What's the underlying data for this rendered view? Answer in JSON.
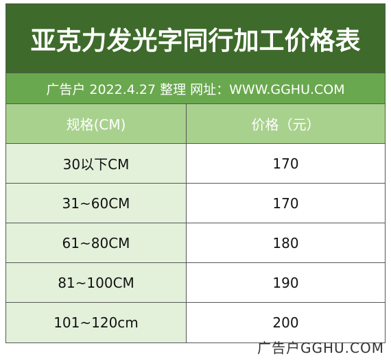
{
  "header": {
    "title": "亚克力发光字同行加工价格表",
    "subtitle": "广告户 2022.4.27 整理 网址：WWW.GGHU.COM"
  },
  "table": {
    "columns": [
      "规格(CM)",
      "价格（元）"
    ],
    "rows": [
      [
        "30以下CM",
        "170"
      ],
      [
        "31~60CM",
        "170"
      ],
      [
        "61~80CM",
        "180"
      ],
      [
        "81~100CM",
        "190"
      ],
      [
        "101~120cm",
        "200"
      ]
    ]
  },
  "watermark": "广告户GGHU.COM"
}
